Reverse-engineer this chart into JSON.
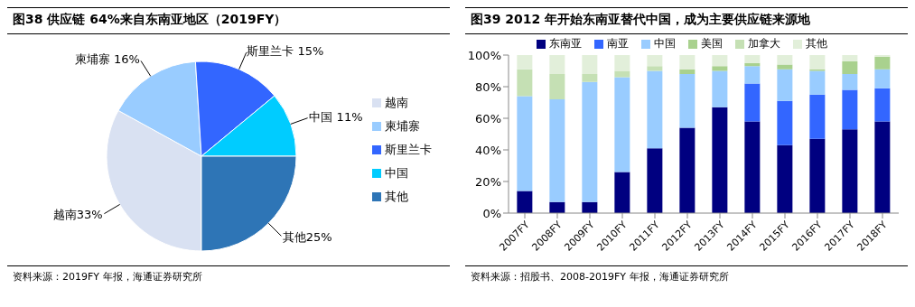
{
  "chart_data": [
    {
      "type": "pie",
      "title": "图38 供应链 64%来自东南亚地区（2019FY）",
      "categories": [
        "越南",
        "柬埔寨",
        "斯里兰卡",
        "中国",
        "其他"
      ],
      "values": [
        33,
        16,
        15,
        11,
        25
      ],
      "colors": [
        "#d9e1f2",
        "#99ccff",
        "#3366ff",
        "#00ccff",
        "#2e75b6"
      ],
      "value_labels": [
        "越南33%",
        "柬埔寨 16%",
        "斯里兰卡 15%",
        "中国 11%",
        "其他25%"
      ],
      "legend": "right",
      "annotations": [
        "资料来源：2019FY 年报，海通证券研究所"
      ]
    },
    {
      "type": "bar",
      "title": "图39 2012 年开始东南亚替代中国，成为主要供应链来源地",
      "stacked": true,
      "categories": [
        "2007FY",
        "2008FY",
        "2009FY",
        "2010FY",
        "2011FY",
        "2012FY",
        "2013FY",
        "2014FY",
        "2015FY",
        "2016FY",
        "2017FY",
        "2018FY"
      ],
      "series": [
        {
          "name": "东南亚",
          "color": "#000080",
          "values": [
            14,
            7,
            7,
            26,
            41,
            54,
            67,
            58,
            43,
            47,
            53,
            58
          ]
        },
        {
          "name": "南亚",
          "color": "#3366ff",
          "values": [
            0,
            0,
            0,
            0,
            0,
            0,
            0,
            24,
            28,
            28,
            25,
            21
          ]
        },
        {
          "name": "中国",
          "color": "#99ccff",
          "values": [
            60,
            65,
            76,
            60,
            49,
            34,
            23,
            11,
            20,
            15,
            10,
            12
          ]
        },
        {
          "name": "美国",
          "color": "#a9d18e",
          "values": [
            0,
            0,
            0,
            0,
            0,
            3,
            3,
            2,
            3,
            1,
            8,
            8
          ]
        },
        {
          "name": "加拿大",
          "color": "#c5e0b4",
          "values": [
            17,
            16,
            5,
            4,
            3,
            0,
            0,
            0,
            0,
            0,
            0,
            0
          ]
        },
        {
          "name": "其他",
          "color": "#e2efda",
          "values": [
            9,
            12,
            12,
            10,
            7,
            9,
            7,
            5,
            6,
            9,
            4,
            1
          ]
        }
      ],
      "ylim": [
        0,
        100
      ],
      "yticks": [
        {
          "value": 0,
          "label": "0%"
        },
        {
          "value": 20,
          "label": "20%"
        },
        {
          "value": 40,
          "label": "40%"
        },
        {
          "value": 60,
          "label": "60%"
        },
        {
          "value": 80,
          "label": "80%"
        },
        {
          "value": 100,
          "label": "100%"
        }
      ],
      "grid": false,
      "legend": "top",
      "annotations": [
        "资料来源：招股书、2008-2019FY 年报，海通证券研究所"
      ]
    }
  ]
}
